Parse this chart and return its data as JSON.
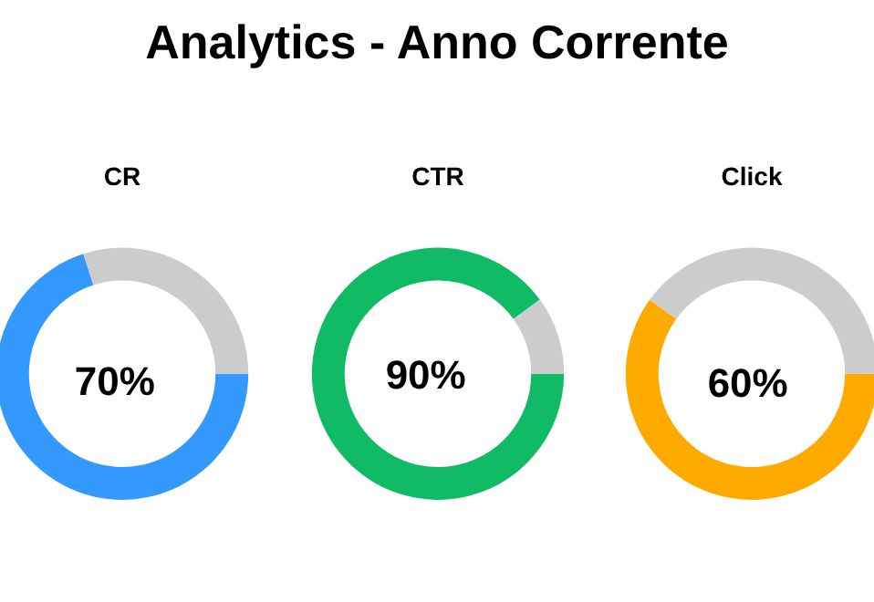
{
  "chart_data": [
    {
      "type": "other",
      "title": "Analytics - Anno Corrente"
    },
    {
      "type": "donut",
      "title": "CR",
      "categories": [
        null,
        null
      ],
      "values": [
        70,
        30
      ],
      "colors": [
        "#3399ff",
        "#cccccc"
      ],
      "value_labels": [
        "70%",
        null
      ]
    },
    {
      "type": "donut",
      "title": "CTR",
      "categories": [
        null,
        null
      ],
      "values": [
        90,
        10
      ],
      "colors": [
        "#11bb66",
        "#cccccc"
      ],
      "value_labels": [
        "90%",
        null
      ]
    },
    {
      "type": "donut",
      "title": "Click",
      "categories": [
        null,
        null
      ],
      "values": [
        60,
        40
      ],
      "colors": [
        "#ffaa00",
        "#cccccc"
      ],
      "value_labels": [
        "60%",
        null
      ]
    }
  ]
}
